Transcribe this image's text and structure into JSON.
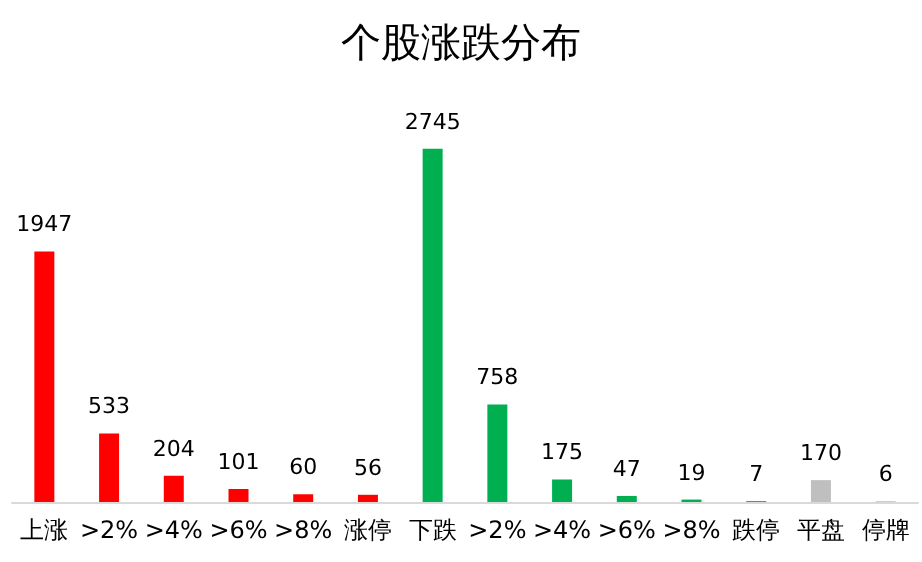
{
  "chart_data": {
    "type": "bar",
    "title": "个股涨跌分布",
    "categories": [
      "上涨",
      ">2%",
      ">4%",
      ">6%",
      ">8%",
      "涨停",
      "下跌",
      ">2%",
      ">4%",
      ">6%",
      ">8%",
      "跌停",
      "平盘",
      "停牌"
    ],
    "values": [
      1947,
      533,
      204,
      101,
      60,
      56,
      2745,
      758,
      175,
      47,
      19,
      7,
      170,
      6
    ],
    "colors": [
      "#ff0000",
      "#ff0000",
      "#ff0000",
      "#ff0000",
      "#ff0000",
      "#ff0000",
      "#00b050",
      "#00b050",
      "#00b050",
      "#00b050",
      "#00b050",
      "#00b050",
      "#bfbfbf",
      "#bfbfbf"
    ],
    "data_labels": true
  }
}
